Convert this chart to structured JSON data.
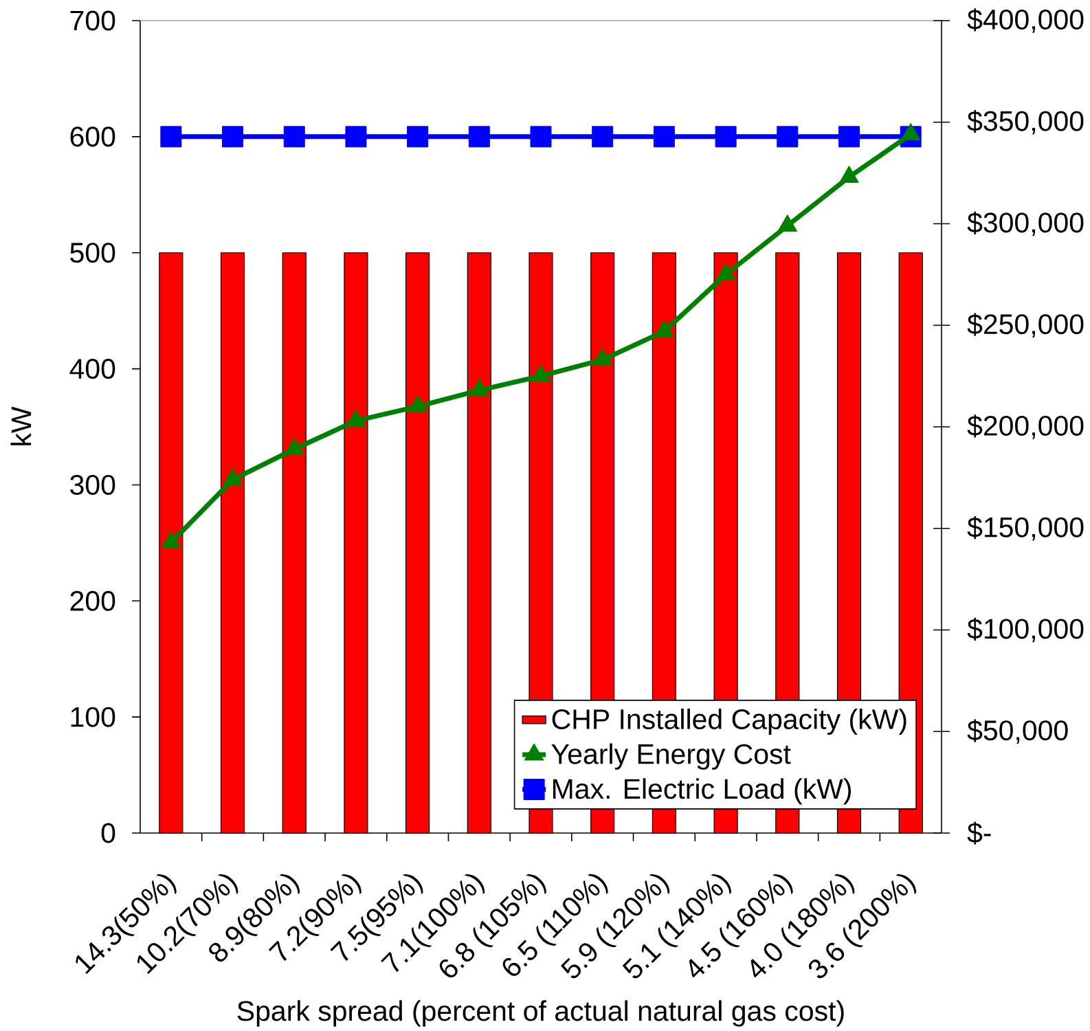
{
  "chart_data": {
    "type": "bar",
    "xlabel": "Spark spread (percent of actual natural gas cost)",
    "ylabel": "kW",
    "categories": [
      "14.3(50%)",
      "10.2(70%)",
      "8.9(80%)",
      "7.2(90%)",
      "7.5(95%)",
      "7.1(100%)",
      "6.8 (105%)",
      "6.5 (110%)",
      "5.9 (120%)",
      "5.1 (140%)",
      "4.5 (160%)",
      "4.0 (180%)",
      "3.6 (200%)"
    ],
    "series": [
      {
        "name": "CHP Installed Capacity (kW)",
        "type": "bar",
        "color": "#ff0000",
        "values": [
          500,
          500,
          500,
          500,
          500,
          500,
          500,
          500,
          500,
          500,
          500,
          500,
          500
        ]
      },
      {
        "name": "Yearly Energy Cost",
        "type": "line",
        "axis": "y2",
        "color": "#008000",
        "marker": "triangle",
        "values": [
          143000,
          174000,
          189000,
          203000,
          210000,
          218000,
          225000,
          233000,
          247000,
          275000,
          299000,
          323000,
          344000
        ]
      },
      {
        "name": "Max. Electric Load (kW)",
        "type": "line",
        "color": "#0000ff",
        "marker": "square",
        "values": [
          600,
          600,
          600,
          600,
          600,
          600,
          600,
          600,
          600,
          600,
          600,
          600,
          600
        ]
      }
    ],
    "ylim": [
      0,
      700
    ],
    "yticks": [
      0,
      100,
      200,
      300,
      400,
      500,
      600,
      700
    ],
    "y2lim": [
      0,
      400000
    ],
    "y2ticks": [
      {
        "value": 0,
        "label": "$-"
      },
      {
        "value": 50000,
        "label": "$50,000"
      },
      {
        "value": 100000,
        "label": "$100,000"
      },
      {
        "value": 150000,
        "label": "$150,000"
      },
      {
        "value": 200000,
        "label": "$200,000"
      },
      {
        "value": 250000,
        "label": "$250,000"
      },
      {
        "value": 300000,
        "label": "$300,000"
      },
      {
        "value": 350000,
        "label": "$350,000"
      },
      {
        "value": 400000,
        "label": "$400,000"
      }
    ],
    "legend": "bottom right"
  }
}
